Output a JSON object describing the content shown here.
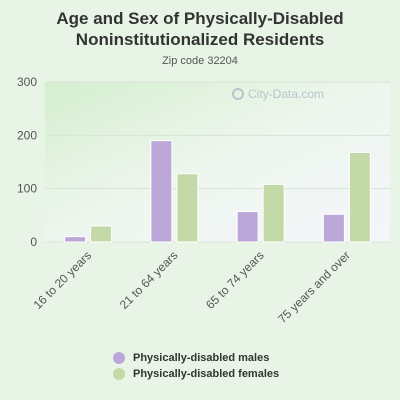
{
  "header": {
    "title_line1": "Age and Sex of Physically-Disabled",
    "title_line2": "Noninstitutionalized Residents",
    "subtitle": "Zip code 32204"
  },
  "watermark": {
    "text": "City-Data.com",
    "icon": "search-icon"
  },
  "chart_data": {
    "type": "bar",
    "title": "Age and Sex of Physically-Disabled Noninstitutionalized Residents",
    "subtitle": "Zip code 32204",
    "categories": [
      "16 to 20 years",
      "21 to 64 years",
      "65 to 74 years",
      "75 years and over"
    ],
    "series": [
      {
        "name": "Physically-disabled males",
        "values": [
          10,
          190,
          57,
          52
        ],
        "color": "#bba8d8"
      },
      {
        "name": "Physically-disabled females",
        "values": [
          30,
          128,
          108,
          168
        ],
        "color": "#c3d9a7"
      }
    ],
    "ylim": [
      0,
      300
    ],
    "yticks": [
      0,
      100,
      200,
      300
    ],
    "grid": true,
    "legend": "bottom",
    "xlabel": "",
    "ylabel": ""
  }
}
